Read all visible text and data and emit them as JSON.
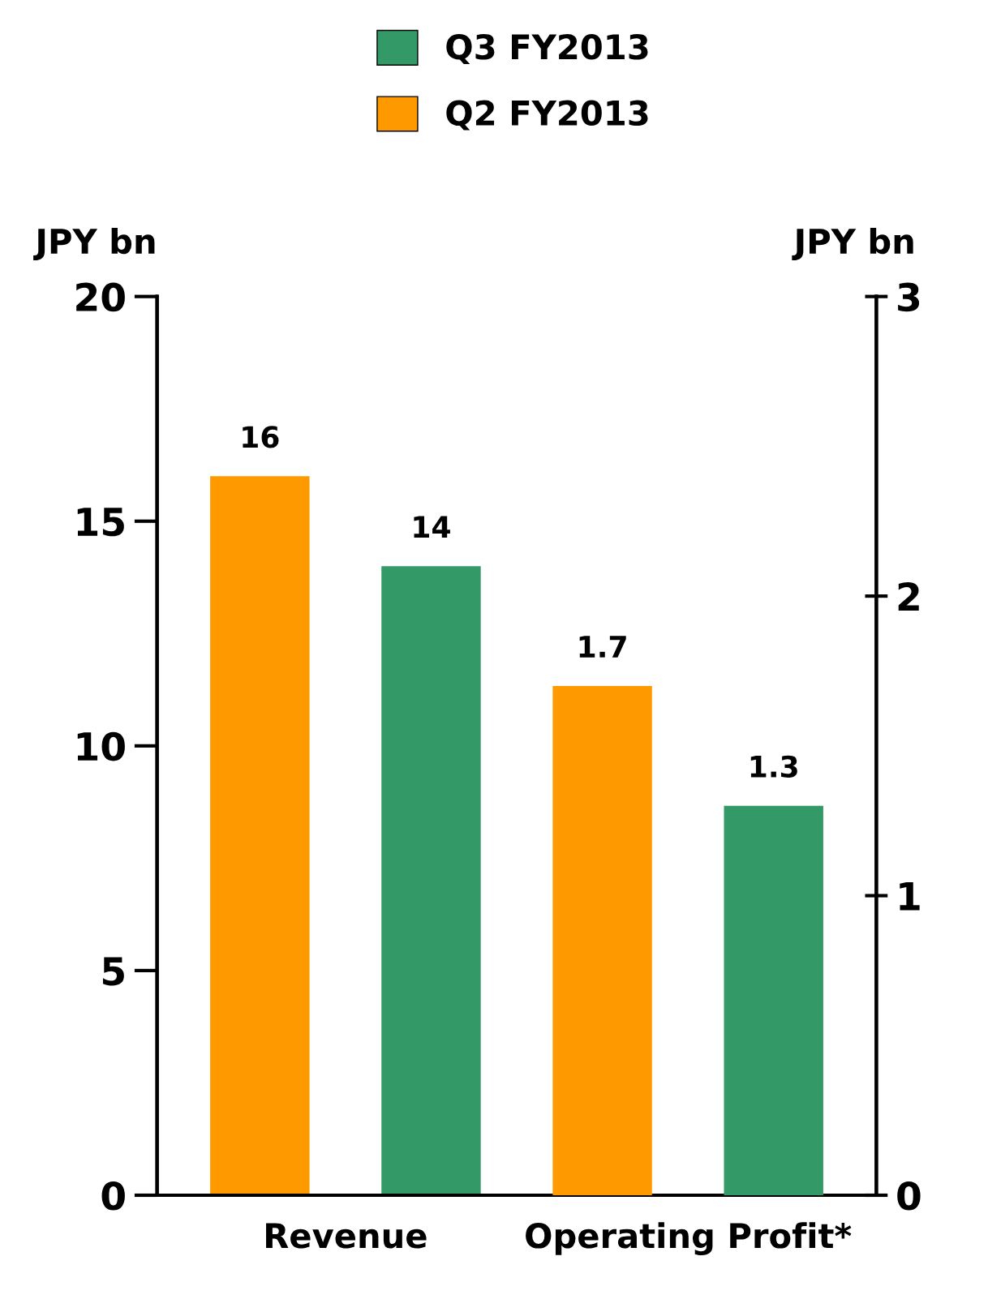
{
  "chart_data": {
    "type": "bar",
    "categories": [
      "Revenue",
      "Operating Profit*"
    ],
    "series": [
      {
        "name": "Q2 FY2013",
        "color": "#ff9900",
        "values": [
          16,
          null
        ]
      },
      {
        "name": "Q3 FY2013",
        "color": "#339966",
        "values": [
          14,
          null
        ]
      },
      {
        "color": "#ff9900",
        "values": [
          null,
          1.7
        ],
        "axis": "y2"
      },
      {
        "color": "#339966",
        "values": [
          null,
          1.3
        ],
        "axis": "y2"
      }
    ],
    "ylabel": "JPY bn",
    "y2label": "JPY bn",
    "ylim": [
      0,
      20
    ],
    "yticks": [
      0,
      5,
      10,
      15,
      20
    ],
    "y2lim": [
      0,
      3
    ],
    "y2ticks": [
      0,
      1,
      2,
      3
    ],
    "data_labels": true,
    "legend": "top",
    "grid": false
  }
}
